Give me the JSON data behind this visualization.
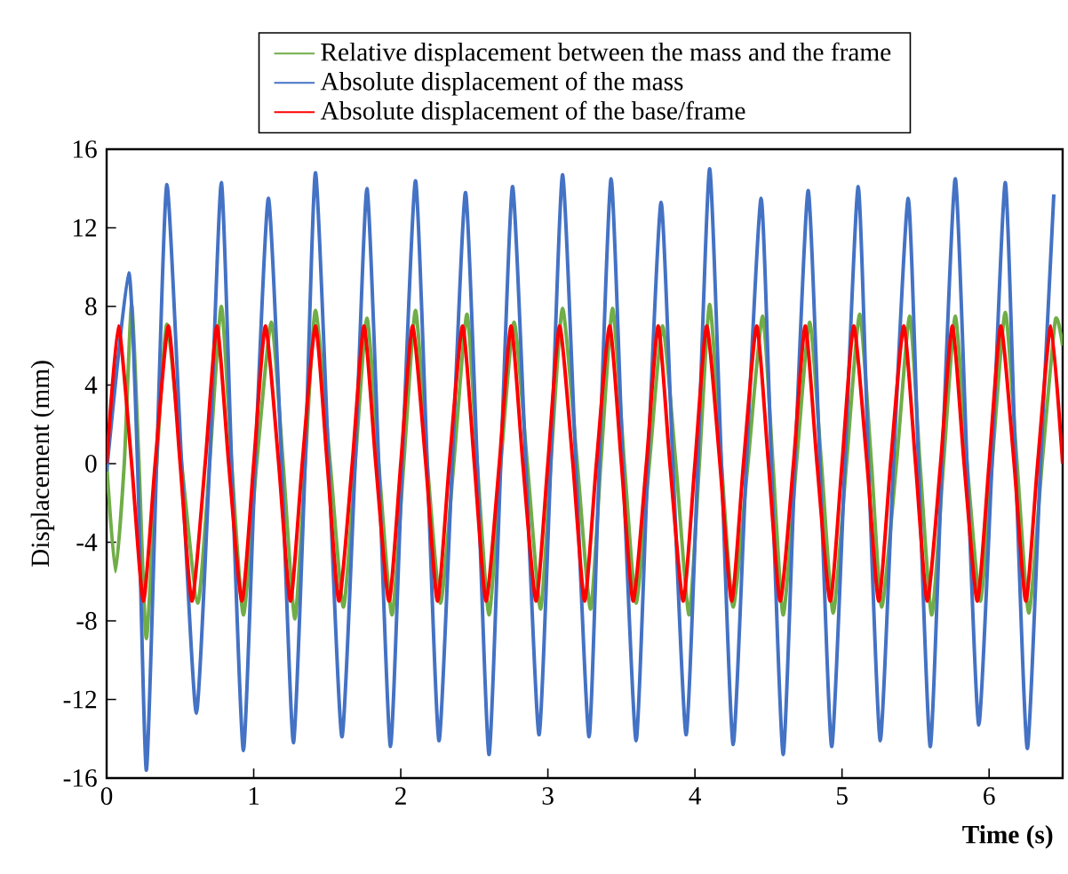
{
  "chart_data": {
    "type": "line",
    "xlabel": "Time (s)",
    "ylabel": "Displacement (mm)",
    "xlim": [
      0,
      6.5
    ],
    "ylim": [
      -16,
      16
    ],
    "xticks": [
      0,
      1,
      2,
      3,
      4,
      5,
      6
    ],
    "yticks": [
      -16,
      -12,
      -8,
      -4,
      0,
      4,
      8,
      12,
      16
    ],
    "legend": "top",
    "series": [
      {
        "name": "Relative displacement between the mass and the frame",
        "color": "#70ad47",
        "x": [
          0,
          0.06,
          0.12,
          0.17,
          0.22,
          0.27,
          0.34,
          0.41,
          0.51,
          0.62,
          0.7,
          0.78,
          0.85,
          0.93,
          1.02,
          1.12,
          1.2,
          1.28,
          1.35,
          1.42,
          1.52,
          1.61,
          1.69,
          1.77,
          1.85,
          1.94,
          2.02,
          2.1,
          2.18,
          2.27,
          2.36,
          2.45,
          2.52,
          2.6,
          2.68,
          2.77,
          2.86,
          2.95,
          3.02,
          3.1,
          3.2,
          3.29,
          3.36,
          3.44,
          3.52,
          3.6,
          3.69,
          3.78,
          3.87,
          3.96,
          4.03,
          4.1,
          4.18,
          4.26,
          4.36,
          4.46,
          4.53,
          4.6,
          4.69,
          4.78,
          4.86,
          4.94,
          5.03,
          5.12,
          5.2,
          5.27,
          5.37,
          5.46,
          5.53,
          5.61,
          5.69,
          5.77,
          5.85,
          5.94,
          6.02,
          6.11,
          6.19,
          6.27,
          6.36,
          6.45,
          6.5
        ],
        "values": [
          0,
          -5.5,
          0,
          8.1,
          0,
          -8.9,
          0,
          7.1,
          0,
          -7.1,
          0,
          8.0,
          0,
          -7.7,
          0,
          7.2,
          0,
          -7.9,
          0,
          7.8,
          0,
          -7.3,
          0,
          7.4,
          0,
          -7.7,
          0,
          7.8,
          0,
          -7.1,
          0,
          7.6,
          0,
          -7.7,
          0,
          7.2,
          0,
          -7.4,
          0,
          7.9,
          0,
          -7.4,
          0,
          7.9,
          0,
          -7.1,
          0,
          7.0,
          0,
          -7.7,
          0,
          8.1,
          0,
          -7.3,
          0,
          7.5,
          0,
          -7.7,
          0,
          7.2,
          0,
          -7.6,
          0,
          7.6,
          0,
          -7.3,
          0,
          7.5,
          0,
          -7.7,
          0,
          7.5,
          0,
          -7.0,
          0,
          7.7,
          0,
          -7.6,
          0,
          7.3,
          6.0
        ]
      },
      {
        "name": "Absolute displacement of the mass",
        "color": "#4472c4",
        "x": [
          0,
          0.15,
          0.21,
          0.27,
          0.34,
          0.41,
          0.51,
          0.61,
          0.7,
          0.78,
          0.85,
          0.93,
          1.01,
          1.1,
          1.19,
          1.27,
          1.35,
          1.42,
          1.51,
          1.6,
          1.69,
          1.77,
          1.85,
          1.93,
          2.01,
          2.1,
          2.18,
          2.26,
          2.35,
          2.44,
          2.52,
          2.6,
          2.68,
          2.76,
          2.85,
          2.94,
          3.02,
          3.1,
          3.19,
          3.28,
          3.35,
          3.43,
          3.51,
          3.6,
          3.68,
          3.77,
          3.85,
          3.94,
          4.02,
          4.1,
          4.18,
          4.26,
          4.35,
          4.45,
          4.52,
          4.6,
          4.68,
          4.77,
          4.85,
          4.93,
          5.02,
          5.11,
          5.18,
          5.26,
          5.35,
          5.45,
          5.52,
          5.6,
          5.68,
          5.77,
          5.85,
          5.93,
          6.02,
          6.11,
          6.18,
          6.26,
          6.35,
          6.44
        ],
        "values": [
          -0.4,
          9.7,
          0,
          -15.6,
          0,
          14.2,
          0,
          -12.7,
          0,
          14.3,
          0,
          -14.6,
          0,
          13.5,
          0,
          -14.2,
          0,
          14.8,
          0,
          -13.9,
          0,
          14.0,
          0,
          -14.4,
          0,
          14.4,
          0,
          -14.1,
          0,
          13.8,
          0,
          -14.8,
          0,
          14.1,
          0,
          -13.8,
          0,
          14.7,
          0,
          -13.9,
          0,
          14.5,
          0,
          -14.1,
          0,
          13.3,
          0,
          -13.8,
          0,
          15.0,
          0,
          -14.3,
          0,
          13.5,
          0,
          -14.8,
          0,
          13.9,
          0,
          -14.4,
          0,
          14.1,
          0,
          -14.1,
          0,
          13.5,
          0,
          -14.4,
          0,
          14.5,
          0,
          -13.3,
          0,
          14.3,
          0,
          -14.5,
          0,
          13.7
        ]
      },
      {
        "name": "Absolute displacement of the base/frame",
        "color": "#ff0000",
        "x": [
          0,
          0.08,
          0.17,
          0.25,
          0.33,
          0.42,
          0.5,
          0.58,
          0.67,
          0.75,
          0.83,
          0.92,
          1,
          1.08,
          1.17,
          1.25,
          1.33,
          1.42,
          1.5,
          1.58,
          1.67,
          1.75,
          1.83,
          1.92,
          2,
          2.08,
          2.17,
          2.25,
          2.33,
          2.42,
          2.5,
          2.58,
          2.67,
          2.75,
          2.83,
          2.92,
          3,
          3.08,
          3.17,
          3.25,
          3.33,
          3.42,
          3.5,
          3.58,
          3.67,
          3.75,
          3.83,
          3.92,
          4,
          4.08,
          4.17,
          4.25,
          4.33,
          4.42,
          4.5,
          4.58,
          4.67,
          4.75,
          4.83,
          4.92,
          5,
          5.08,
          5.17,
          5.25,
          5.33,
          5.42,
          5.5,
          5.58,
          5.67,
          5.75,
          5.83,
          5.92,
          6,
          6.08,
          6.17,
          6.25,
          6.33,
          6.42,
          6.5
        ],
        "values": [
          0,
          7,
          0,
          -7,
          0,
          7,
          0,
          -7,
          0,
          7,
          0,
          -7,
          0,
          7,
          0,
          -7,
          0,
          7,
          0,
          -7,
          0,
          7,
          0,
          -7,
          0,
          7,
          0,
          -7,
          0,
          7,
          0,
          -7,
          0,
          7,
          0,
          -7,
          0,
          7,
          0,
          -7,
          0,
          7,
          0,
          -7,
          0,
          7,
          0,
          -7,
          0,
          7,
          0,
          -7,
          0,
          7,
          0,
          -7,
          0,
          7,
          0,
          -7,
          0,
          7,
          0,
          -7,
          0,
          7,
          0,
          -7,
          0,
          7,
          0,
          -7,
          0,
          7,
          0,
          -7,
          0,
          7,
          0
        ]
      }
    ]
  }
}
